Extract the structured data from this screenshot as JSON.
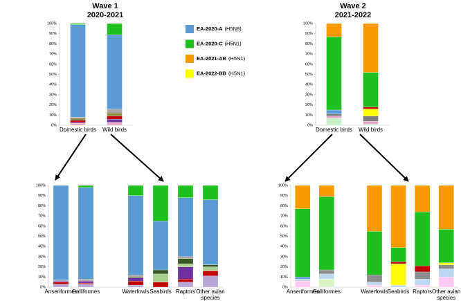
{
  "headers": [
    {
      "wave": "Wave 1",
      "period": "2020-2021"
    },
    {
      "wave": "Wave 2",
      "period": "2021-2022"
    }
  ],
  "legend": [
    {
      "name": "EA-2020-A",
      "subtype": "(H5N8)",
      "color": "#5b9bd5"
    },
    {
      "name": "EA-2020-C",
      "subtype": "(H5N1)",
      "color": "#1ec01e"
    },
    {
      "name": "EA-2021-AB",
      "subtype": "(H5N1)",
      "color": "#f79a00"
    },
    {
      "name": "EA-2022-BB",
      "subtype": "(H5N1)",
      "color": "#ffff00"
    }
  ],
  "chart_data": [
    {
      "type": "bar",
      "stacked": true,
      "categories": [
        "Domestic birds",
        "Wild birds"
      ],
      "series": [
        {
          "color": "#e3a9c8",
          "values": [
            2,
            3
          ]
        },
        {
          "color": "#7030a0",
          "values": [
            1,
            3
          ]
        },
        {
          "color": "#c00000",
          "values": [
            2,
            3
          ]
        },
        {
          "color": "#8a8a3a",
          "values": [
            2,
            3
          ]
        },
        {
          "color": "#a6a6a6",
          "values": [
            1,
            4
          ]
        },
        {
          "color": "#5b9bd5",
          "values": [
            91,
            73
          ]
        },
        {
          "color": "#1ec01e",
          "values": [
            1,
            11
          ]
        }
      ],
      "ylim": [
        0,
        100
      ],
      "yticks": [
        {
          "value": 0,
          "label": "0%"
        },
        {
          "value": 10,
          "label": "10%"
        },
        {
          "value": 20,
          "label": "20%"
        },
        {
          "value": 30,
          "label": "30%"
        },
        {
          "value": 40,
          "label": "40%"
        },
        {
          "value": 50,
          "label": "50%"
        },
        {
          "value": 60,
          "label": "60%"
        },
        {
          "value": 70,
          "label": "70%"
        },
        {
          "value": 80,
          "label": "80%"
        },
        {
          "value": 90,
          "label": "90%"
        },
        {
          "value": 100,
          "label": "100%"
        }
      ]
    },
    {
      "type": "bar",
      "stacked": true,
      "categories": [
        "Domestic birds",
        "Wild birds"
      ],
      "series": [
        {
          "color": "#c6efce",
          "values": [
            7,
            1
          ]
        },
        {
          "color": "#e3a9c8",
          "values": [
            2,
            3
          ]
        },
        {
          "color": "#7f7f7f",
          "values": [
            2,
            5
          ]
        },
        {
          "color": "#ffff00",
          "values": [
            0,
            7
          ]
        },
        {
          "color": "#c00000",
          "values": [
            0,
            2
          ]
        },
        {
          "color": "#5b9bd5",
          "values": [
            4,
            0
          ]
        },
        {
          "color": "#1ec01e",
          "values": [
            72,
            34
          ]
        },
        {
          "color": "#f79a00",
          "values": [
            13,
            48
          ]
        }
      ],
      "ylim": [
        0,
        100
      ],
      "yticks": [
        {
          "value": 0,
          "label": "0%"
        },
        {
          "value": 10,
          "label": "10%"
        },
        {
          "value": 20,
          "label": "20%"
        },
        {
          "value": 30,
          "label": "30%"
        },
        {
          "value": 40,
          "label": "40%"
        },
        {
          "value": 50,
          "label": "50%"
        },
        {
          "value": 60,
          "label": "60%"
        },
        {
          "value": 70,
          "label": "70%"
        },
        {
          "value": 80,
          "label": "80%"
        },
        {
          "value": 90,
          "label": "90%"
        },
        {
          "value": 100,
          "label": "100%"
        }
      ]
    },
    {
      "type": "bar",
      "stacked": true,
      "categories": [
        "Anseriformes",
        "Galliformes",
        null,
        "Waterfowls",
        "Seabirds",
        "Raptors",
        "Other avian species"
      ],
      "series": [
        {
          "color": "#b4a7d6",
          "values": [
            3,
            3,
            null,
            2,
            0,
            5,
            11
          ]
        },
        {
          "color": "#c00000",
          "values": [
            2,
            1,
            null,
            4,
            5,
            3,
            5
          ]
        },
        {
          "color": "#7030a0",
          "values": [
            1,
            2,
            null,
            3,
            0,
            12,
            0
          ]
        },
        {
          "color": "#a9d18e",
          "values": [
            0,
            0,
            null,
            0,
            8,
            3,
            4
          ]
        },
        {
          "color": "#375623",
          "values": [
            0,
            0,
            null,
            1,
            4,
            5,
            2
          ]
        },
        {
          "color": "#a6a6a6",
          "values": [
            1,
            2,
            null,
            2,
            0,
            2,
            0
          ]
        },
        {
          "color": "#5b9bd5",
          "values": [
            93,
            90,
            null,
            78,
            48,
            58,
            64
          ]
        },
        {
          "color": "#1ec01e",
          "values": [
            0,
            2,
            null,
            10,
            35,
            12,
            14
          ]
        }
      ],
      "ylim": [
        0,
        100
      ],
      "yticks": [
        {
          "value": 0,
          "label": "0%"
        },
        {
          "value": 10,
          "label": "10%"
        },
        {
          "value": 20,
          "label": "20%"
        },
        {
          "value": 30,
          "label": "30%"
        },
        {
          "value": 40,
          "label": "40%"
        },
        {
          "value": 50,
          "label": "50%"
        },
        {
          "value": 60,
          "label": "60%"
        },
        {
          "value": 70,
          "label": "70%"
        },
        {
          "value": 80,
          "label": "80%"
        },
        {
          "value": 90,
          "label": "90%"
        },
        {
          "value": 100,
          "label": "100%"
        }
      ]
    },
    {
      "type": "bar",
      "stacked": true,
      "categories": [
        "Anseriformes",
        "Galliformes",
        null,
        "Waterfowls",
        "Seabirds",
        "Raptors",
        "Other avian species"
      ],
      "series": [
        {
          "color": "#ffc9f0",
          "values": [
            6,
            0,
            null,
            2,
            0,
            2,
            10
          ]
        },
        {
          "color": "#d9f2c6",
          "values": [
            0,
            8,
            null,
            0,
            0,
            0,
            0
          ]
        },
        {
          "color": "#bdd7ee",
          "values": [
            2,
            5,
            null,
            3,
            2,
            6,
            8
          ]
        },
        {
          "color": "#8c8c8c",
          "values": [
            0,
            4,
            null,
            7,
            0,
            7,
            4
          ]
        },
        {
          "color": "#ffff00",
          "values": [
            0,
            0,
            null,
            0,
            21,
            0,
            2
          ]
        },
        {
          "color": "#c00000",
          "values": [
            0,
            0,
            null,
            0,
            2,
            6,
            0
          ]
        },
        {
          "color": "#5b9bd5",
          "values": [
            2,
            0,
            null,
            0,
            0,
            0,
            0
          ]
        },
        {
          "color": "#1ec01e",
          "values": [
            67,
            72,
            null,
            43,
            14,
            53,
            33
          ]
        },
        {
          "color": "#f79a00",
          "values": [
            23,
            11,
            null,
            45,
            61,
            26,
            43
          ]
        }
      ],
      "ylim": [
        0,
        100
      ],
      "yticks": [
        {
          "value": 0,
          "label": "0%"
        },
        {
          "value": 10,
          "label": "10%"
        },
        {
          "value": 20,
          "label": "20%"
        },
        {
          "value": 30,
          "label": "30%"
        },
        {
          "value": 40,
          "label": "40%"
        },
        {
          "value": 50,
          "label": "50%"
        },
        {
          "value": 60,
          "label": "60%"
        },
        {
          "value": 70,
          "label": "70%"
        },
        {
          "value": 80,
          "label": "80%"
        },
        {
          "value": 90,
          "label": "90%"
        },
        {
          "value": 100,
          "label": "100%"
        }
      ]
    }
  ]
}
